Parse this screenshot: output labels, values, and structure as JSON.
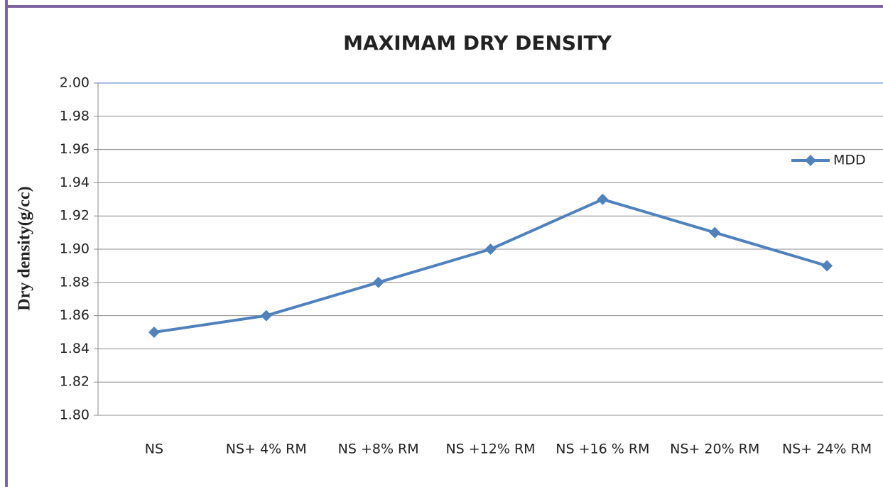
{
  "chart_data": {
    "type": "line",
    "title": "MAXIMAM DRY DENSITY",
    "y_label": "Dry density(g/cc)",
    "categories": [
      "NS",
      "NS+ 4% RM",
      "NS +8% RM",
      "NS +12% RM",
      "NS +16 % RM",
      "NS+ 20% RM",
      "NS+ 24% RM"
    ],
    "series": [
      {
        "name": "MDD",
        "color": "#4f81bd",
        "values": [
          1.85,
          1.86,
          1.88,
          1.9,
          1.93,
          1.91,
          1.89
        ]
      }
    ],
    "ylim": [
      1.8,
      2.0
    ],
    "yticks": [
      {
        "value": 1.8,
        "label": "1.80"
      },
      1.82,
      1.84,
      1.86,
      1.88,
      {
        "value": 1.9,
        "label": "1.90"
      },
      1.92,
      1.94,
      1.96,
      1.98,
      {
        "value": 2.0,
        "label": "2.00"
      }
    ],
    "grid": true,
    "legend": "right"
  }
}
